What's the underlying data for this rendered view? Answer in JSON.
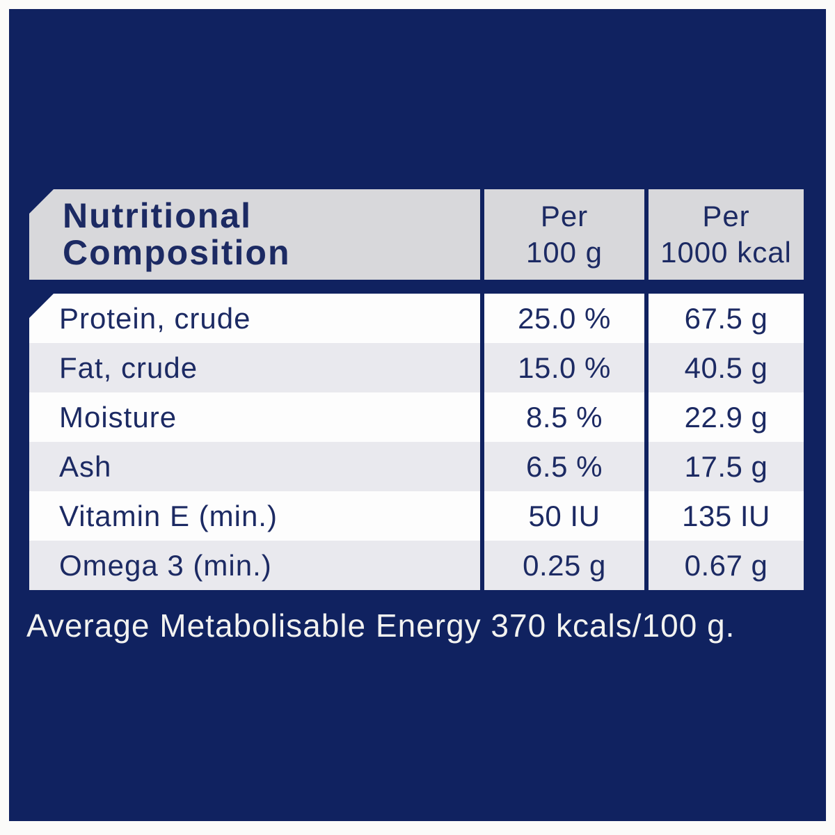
{
  "table": {
    "header": {
      "title_lines": [
        "Nutritional",
        "Composition"
      ],
      "per_100g_lines": [
        "Per",
        "100 g"
      ],
      "per_1000kcal_lines": [
        "Per",
        "1000 kcal"
      ]
    },
    "rows": [
      {
        "label": "Protein, crude",
        "per_100g": "25.0 %",
        "per_1000kcal": "67.5 g"
      },
      {
        "label": "Fat, crude",
        "per_100g": "15.0 %",
        "per_1000kcal": "40.5 g"
      },
      {
        "label": "Moisture",
        "per_100g": "8.5 %",
        "per_1000kcal": "22.9 g"
      },
      {
        "label": "Ash",
        "per_100g": "6.5 %",
        "per_1000kcal": "17.5 g"
      },
      {
        "label": "Vitamin E (min.)",
        "per_100g": "50 IU",
        "per_1000kcal": "135 IU"
      },
      {
        "label": "Omega 3 (min.)",
        "per_100g": "0.25 g",
        "per_1000kcal": "0.67 g"
      }
    ]
  },
  "footer": {
    "text": "Average Metabolisable Energy 370 kcals/100 g."
  },
  "colors": {
    "panel_navy": "#102260",
    "header_gray": "#d8d8db",
    "row_white": "#fdfdfd",
    "row_gray": "#e9e9ee",
    "text_navy": "#1c2a63",
    "footer_white": "#f2f2f0",
    "page_margin_white": "#fbfbf9"
  }
}
